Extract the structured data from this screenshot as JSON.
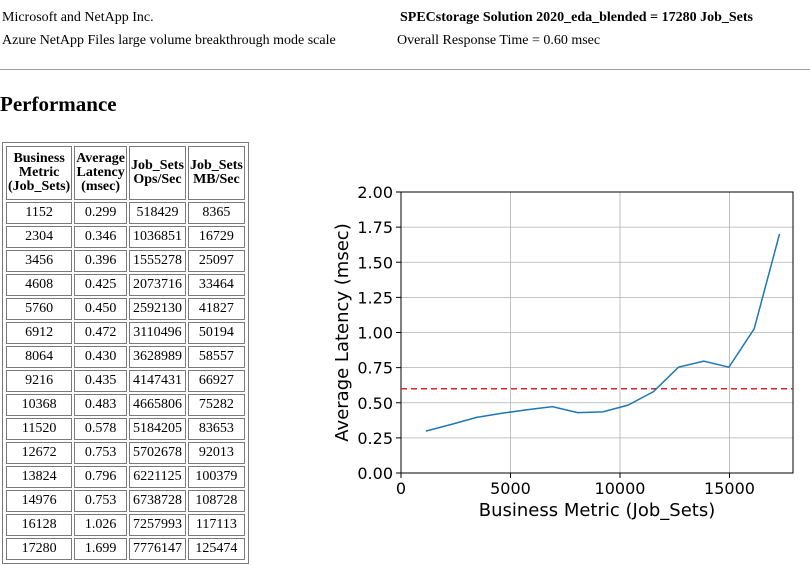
{
  "header": {
    "vendor": "Microsoft and NetApp Inc.",
    "system": "Azure NetApp Files large volume breakthrough mode scale",
    "result": "SPECstorage Solution 2020_eda_blended = 17280 Job_Sets",
    "response": "Overall Response Time = 0.60 msec"
  },
  "section_title": "Performance",
  "table": {
    "headers": [
      [
        "Business",
        "Metric",
        "(Job_Sets)"
      ],
      [
        "Average",
        "Latency",
        "(msec)"
      ],
      [
        "Job_Sets",
        "Ops/Sec"
      ],
      [
        "Job_Sets",
        "MB/Sec"
      ]
    ],
    "rows": [
      [
        "1152",
        "0.299",
        "518429",
        "8365"
      ],
      [
        "2304",
        "0.346",
        "1036851",
        "16729"
      ],
      [
        "3456",
        "0.396",
        "1555278",
        "25097"
      ],
      [
        "4608",
        "0.425",
        "2073716",
        "33464"
      ],
      [
        "5760",
        "0.450",
        "2592130",
        "41827"
      ],
      [
        "6912",
        "0.472",
        "3110496",
        "50194"
      ],
      [
        "8064",
        "0.430",
        "3628989",
        "58557"
      ],
      [
        "9216",
        "0.435",
        "4147431",
        "66927"
      ],
      [
        "10368",
        "0.483",
        "4665806",
        "75282"
      ],
      [
        "11520",
        "0.578",
        "5184205",
        "83653"
      ],
      [
        "12672",
        "0.753",
        "5702678",
        "92013"
      ],
      [
        "13824",
        "0.796",
        "6221125",
        "100379"
      ],
      [
        "14976",
        "0.753",
        "6738728",
        "108728"
      ],
      [
        "16128",
        "1.026",
        "7257993",
        "117113"
      ],
      [
        "17280",
        "1.699",
        "7776147",
        "125474"
      ]
    ]
  },
  "chart_data": {
    "type": "line",
    "title": "",
    "xlabel": "Business Metric (Job_Sets)",
    "ylabel": "Average Latency (msec)",
    "xlim": [
      0,
      17900
    ],
    "ylim": [
      0,
      2.0
    ],
    "xticks": [
      0,
      5000,
      10000,
      15000
    ],
    "yticks": [
      0.0,
      0.25,
      0.5,
      0.75,
      1.0,
      1.25,
      1.5,
      1.75,
      2.0
    ],
    "ytick_labels": [
      "0.00",
      "0.25",
      "0.50",
      "0.75",
      "1.00",
      "1.25",
      "1.50",
      "1.75",
      "2.00"
    ],
    "grid": true,
    "series": [
      {
        "color": "#1f77b4",
        "x": [
          1152,
          2304,
          3456,
          4608,
          5760,
          6912,
          8064,
          9216,
          10368,
          11520,
          12672,
          13824,
          14976,
          16128,
          17280
        ],
        "y": [
          0.299,
          0.346,
          0.396,
          0.425,
          0.45,
          0.472,
          0.43,
          0.435,
          0.483,
          0.578,
          0.753,
          0.796,
          0.753,
          1.026,
          1.699
        ]
      }
    ],
    "reference_line": {
      "y": 0.6,
      "color": "#d62728",
      "style": "dashed"
    }
  }
}
